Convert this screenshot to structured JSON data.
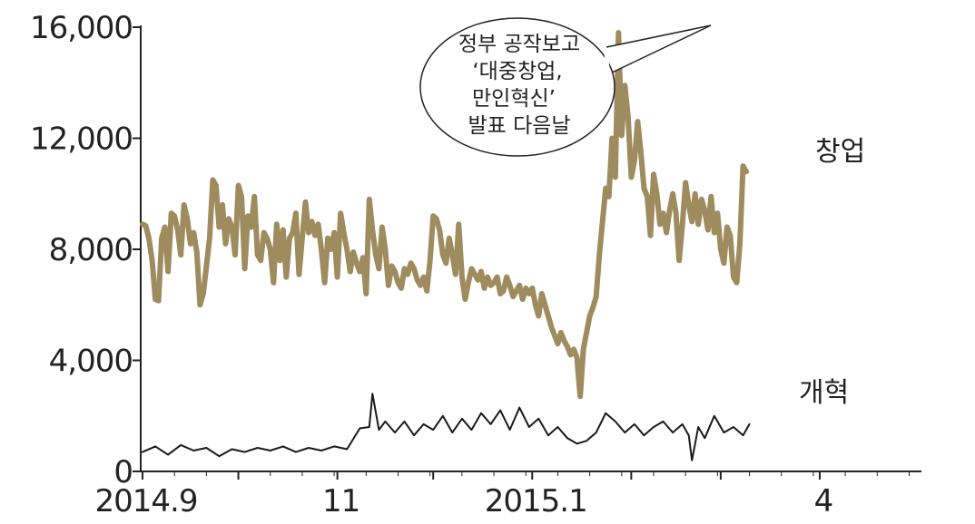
{
  "colors": {
    "startup": "#9e8b5e",
    "reform": "#1a1a1a",
    "axis": "#222222"
  },
  "chart_data": {
    "type": "line",
    "title": "",
    "xlabel": "",
    "ylabel": "",
    "ylim": [
      0,
      16000
    ],
    "yticks": [
      0,
      4000,
      8000,
      12000,
      16000
    ],
    "ytick_labels": [
      "0",
      "4,000",
      "8,000",
      "12,000",
      "16,000"
    ],
    "xlim": [
      "2014-09-01",
      "2015-04-30"
    ],
    "xtick_labels": [
      {
        "date": "2014-09-01",
        "label": "2014.9"
      },
      {
        "date": "2014-11-01",
        "label": "11"
      },
      {
        "date": "2015-01-01",
        "label": "2015.1"
      },
      {
        "date": "2015-04-01",
        "label": "4"
      }
    ],
    "minor_ticks": [
      "2014-10-01",
      "2014-12-01",
      "2015-02-01",
      "2015-03-01"
    ],
    "grid": false,
    "series": [
      {
        "name": "창업",
        "values": [
          [
            "2014-09-01",
            8900
          ],
          [
            "2014-09-02",
            8850
          ],
          [
            "2014-09-03",
            8400
          ],
          [
            "2014-09-04",
            7600
          ],
          [
            "2014-09-05",
            6200
          ],
          [
            "2014-09-06",
            6150
          ],
          [
            "2014-09-07",
            8400
          ],
          [
            "2014-09-08",
            8800
          ],
          [
            "2014-09-09",
            7200
          ],
          [
            "2014-09-10",
            9300
          ],
          [
            "2014-09-11",
            9200
          ],
          [
            "2014-09-12",
            8700
          ],
          [
            "2014-09-13",
            7800
          ],
          [
            "2014-09-14",
            9600
          ],
          [
            "2014-09-15",
            9100
          ],
          [
            "2014-09-16",
            8200
          ],
          [
            "2014-09-17",
            8600
          ],
          [
            "2014-09-18",
            7900
          ],
          [
            "2014-09-19",
            6000
          ],
          [
            "2014-09-20",
            6400
          ],
          [
            "2014-09-21",
            7400
          ],
          [
            "2014-09-22",
            8400
          ],
          [
            "2014-09-23",
            10500
          ],
          [
            "2014-09-24",
            10300
          ],
          [
            "2014-09-25",
            8800
          ],
          [
            "2014-09-26",
            9600
          ],
          [
            "2014-09-27",
            8200
          ],
          [
            "2014-09-28",
            9100
          ],
          [
            "2014-09-29",
            8800
          ],
          [
            "2014-09-30",
            7800
          ],
          [
            "2014-10-01",
            10300
          ],
          [
            "2014-10-02",
            9900
          ],
          [
            "2014-10-03",
            7300
          ],
          [
            "2014-10-04",
            9200
          ],
          [
            "2014-10-05",
            8800
          ],
          [
            "2014-10-06",
            9900
          ],
          [
            "2014-10-07",
            7800
          ],
          [
            "2014-10-08",
            7600
          ],
          [
            "2014-10-09",
            8600
          ],
          [
            "2014-10-10",
            8400
          ],
          [
            "2014-10-11",
            8000
          ],
          [
            "2014-10-12",
            6800
          ],
          [
            "2014-10-13",
            8900
          ],
          [
            "2014-10-14",
            7600
          ],
          [
            "2014-10-15",
            8700
          ],
          [
            "2014-10-16",
            7000
          ],
          [
            "2014-10-17",
            8400
          ],
          [
            "2014-10-18",
            8600
          ],
          [
            "2014-10-19",
            9300
          ],
          [
            "2014-10-20",
            7100
          ],
          [
            "2014-10-21",
            8400
          ],
          [
            "2014-10-22",
            9700
          ],
          [
            "2014-10-23",
            8600
          ],
          [
            "2014-10-24",
            9000
          ],
          [
            "2014-10-25",
            8500
          ],
          [
            "2014-10-26",
            8900
          ],
          [
            "2014-10-27",
            8000
          ],
          [
            "2014-10-28",
            6800
          ],
          [
            "2014-10-29",
            8400
          ],
          [
            "2014-10-30",
            8000
          ],
          [
            "2014-10-31",
            8600
          ],
          [
            "2014-11-01",
            7000
          ],
          [
            "2014-11-02",
            9300
          ],
          [
            "2014-11-03",
            8600
          ],
          [
            "2014-11-04",
            8000
          ],
          [
            "2014-11-05",
            7200
          ],
          [
            "2014-11-06",
            7900
          ],
          [
            "2014-11-07",
            7500
          ],
          [
            "2014-11-08",
            7200
          ],
          [
            "2014-11-09",
            7700
          ],
          [
            "2014-11-10",
            6400
          ],
          [
            "2014-11-11",
            9800
          ],
          [
            "2014-11-12",
            8700
          ],
          [
            "2014-11-13",
            7800
          ],
          [
            "2014-11-14",
            7300
          ],
          [
            "2014-11-15",
            8800
          ],
          [
            "2014-11-16",
            8000
          ],
          [
            "2014-11-17",
            6700
          ],
          [
            "2014-11-18",
            7400
          ],
          [
            "2014-11-19",
            7200
          ],
          [
            "2014-11-20",
            6800
          ],
          [
            "2014-11-21",
            6600
          ],
          [
            "2014-11-22",
            7300
          ],
          [
            "2014-11-23",
            7100
          ],
          [
            "2014-11-24",
            7500
          ],
          [
            "2014-11-25",
            7300
          ],
          [
            "2014-11-26",
            6900
          ],
          [
            "2014-11-27",
            6700
          ],
          [
            "2014-11-28",
            7000
          ],
          [
            "2014-11-29",
            6500
          ],
          [
            "2014-11-30",
            7600
          ],
          [
            "2014-12-01",
            9200
          ],
          [
            "2014-12-02",
            9100
          ],
          [
            "2014-12-03",
            8700
          ],
          [
            "2014-12-04",
            7800
          ],
          [
            "2014-12-05",
            7500
          ],
          [
            "2014-12-06",
            8400
          ],
          [
            "2014-12-07",
            7800
          ],
          [
            "2014-12-08",
            7100
          ],
          [
            "2014-12-09",
            8900
          ],
          [
            "2014-12-10",
            7000
          ],
          [
            "2014-12-11",
            6200
          ],
          [
            "2014-12-12",
            6800
          ],
          [
            "2014-12-13",
            7300
          ],
          [
            "2014-12-14",
            7100
          ],
          [
            "2014-12-15",
            6900
          ],
          [
            "2014-12-16",
            7200
          ],
          [
            "2014-12-17",
            6600
          ],
          [
            "2014-12-18",
            7000
          ],
          [
            "2014-12-19",
            6700
          ],
          [
            "2014-12-20",
            6800
          ],
          [
            "2014-12-21",
            7000
          ],
          [
            "2014-12-22",
            6400
          ],
          [
            "2014-12-23",
            6500
          ],
          [
            "2014-12-24",
            7000
          ],
          [
            "2014-12-25",
            6700
          ],
          [
            "2014-12-26",
            6300
          ],
          [
            "2014-12-27",
            6500
          ],
          [
            "2014-12-28",
            6700
          ],
          [
            "2014-12-29",
            6200
          ],
          [
            "2014-12-30",
            6600
          ],
          [
            "2014-12-31",
            6400
          ],
          [
            "2015-01-01",
            6600
          ],
          [
            "2015-01-02",
            6000
          ],
          [
            "2015-01-03",
            5600
          ],
          [
            "2015-01-04",
            6400
          ],
          [
            "2015-01-05",
            6000
          ],
          [
            "2015-01-06",
            5600
          ],
          [
            "2015-01-07",
            5200
          ],
          [
            "2015-01-08",
            4900
          ],
          [
            "2015-01-09",
            4600
          ],
          [
            "2015-01-10",
            5000
          ],
          [
            "2015-01-11",
            4700
          ],
          [
            "2015-01-12",
            4500
          ],
          [
            "2015-01-13",
            4200
          ],
          [
            "2015-01-14",
            4400
          ],
          [
            "2015-01-15",
            4100
          ],
          [
            "2015-01-16",
            2700
          ],
          [
            "2015-01-17",
            4400
          ],
          [
            "2015-01-18",
            5000
          ],
          [
            "2015-01-19",
            5600
          ],
          [
            "2015-01-20",
            5900
          ],
          [
            "2015-01-21",
            6300
          ],
          [
            "2015-01-22",
            7800
          ],
          [
            "2015-01-23",
            9000
          ],
          [
            "2015-01-24",
            10200
          ],
          [
            "2015-01-25",
            9900
          ],
          [
            "2015-01-26",
            12000
          ],
          [
            "2015-01-27",
            10600
          ],
          [
            "2015-01-28",
            15800
          ],
          [
            "2015-01-29",
            12100
          ],
          [
            "2015-01-30",
            13900
          ],
          [
            "2015-01-31",
            12800
          ],
          [
            "2015-02-01",
            10600
          ],
          [
            "2015-02-02",
            11200
          ],
          [
            "2015-02-03",
            12600
          ],
          [
            "2015-02-04",
            11500
          ],
          [
            "2015-02-05",
            10200
          ],
          [
            "2015-02-06",
            9900
          ],
          [
            "2015-02-07",
            8500
          ],
          [
            "2015-02-08",
            10700
          ],
          [
            "2015-02-09",
            10000
          ],
          [
            "2015-02-10",
            8900
          ],
          [
            "2015-02-11",
            9300
          ],
          [
            "2015-02-12",
            8600
          ],
          [
            "2015-02-13",
            9400
          ],
          [
            "2015-02-14",
            10000
          ],
          [
            "2015-02-15",
            9300
          ],
          [
            "2015-02-16",
            7600
          ],
          [
            "2015-02-17",
            8900
          ],
          [
            "2015-02-18",
            10400
          ],
          [
            "2015-02-19",
            9600
          ],
          [
            "2015-02-20",
            9000
          ],
          [
            "2015-02-21",
            10000
          ],
          [
            "2015-02-22",
            8900
          ],
          [
            "2015-02-23",
            9800
          ],
          [
            "2015-02-24",
            9400
          ],
          [
            "2015-02-25",
            8700
          ],
          [
            "2015-02-26",
            9900
          ],
          [
            "2015-02-27",
            8600
          ],
          [
            "2015-02-28",
            9300
          ],
          [
            "2015-03-01",
            8000
          ],
          [
            "2015-03-02",
            7500
          ],
          [
            "2015-03-03",
            8800
          ],
          [
            "2015-03-04",
            8500
          ],
          [
            "2015-03-05",
            7000
          ],
          [
            "2015-03-06",
            6800
          ],
          [
            "2015-03-07",
            8200
          ],
          [
            "2015-03-08",
            11000
          ],
          [
            "2015-03-09",
            10800
          ]
        ]
      },
      {
        "name": "개혁",
        "values": [
          [
            "2014-09-01",
            700
          ],
          [
            "2014-09-05",
            900
          ],
          [
            "2014-09-09",
            600
          ],
          [
            "2014-09-13",
            950
          ],
          [
            "2014-09-17",
            750
          ],
          [
            "2014-09-21",
            850
          ],
          [
            "2014-09-25",
            550
          ],
          [
            "2014-09-29",
            800
          ],
          [
            "2014-10-03",
            700
          ],
          [
            "2014-10-07",
            850
          ],
          [
            "2014-10-11",
            750
          ],
          [
            "2014-10-15",
            900
          ],
          [
            "2014-10-19",
            700
          ],
          [
            "2014-10-23",
            850
          ],
          [
            "2014-10-27",
            750
          ],
          [
            "2014-10-31",
            900
          ],
          [
            "2014-11-04",
            800
          ],
          [
            "2014-11-08",
            1550
          ],
          [
            "2014-11-11",
            1600
          ],
          [
            "2014-11-12",
            2800
          ],
          [
            "2014-11-14",
            1500
          ],
          [
            "2014-11-16",
            1800
          ],
          [
            "2014-11-19",
            1400
          ],
          [
            "2014-11-22",
            1800
          ],
          [
            "2014-11-25",
            1300
          ],
          [
            "2014-11-28",
            1700
          ],
          [
            "2014-12-01",
            1500
          ],
          [
            "2014-12-04",
            2000
          ],
          [
            "2014-12-07",
            1400
          ],
          [
            "2014-12-10",
            1900
          ],
          [
            "2014-12-13",
            1500
          ],
          [
            "2014-12-16",
            2100
          ],
          [
            "2014-12-19",
            1700
          ],
          [
            "2014-12-22",
            2200
          ],
          [
            "2014-12-25",
            1500
          ],
          [
            "2014-12-28",
            2300
          ],
          [
            "2014-12-31",
            1600
          ],
          [
            "2015-01-03",
            1900
          ],
          [
            "2015-01-06",
            1300
          ],
          [
            "2015-01-09",
            1600
          ],
          [
            "2015-01-12",
            1200
          ],
          [
            "2015-01-15",
            1000
          ],
          [
            "2015-01-18",
            1100
          ],
          [
            "2015-01-21",
            1400
          ],
          [
            "2015-01-24",
            2100
          ],
          [
            "2015-01-27",
            1800
          ],
          [
            "2015-01-30",
            1400
          ],
          [
            "2015-02-02",
            1700
          ],
          [
            "2015-02-05",
            1300
          ],
          [
            "2015-02-08",
            1600
          ],
          [
            "2015-02-11",
            1800
          ],
          [
            "2015-02-14",
            1400
          ],
          [
            "2015-02-17",
            1700
          ],
          [
            "2015-02-19",
            1300
          ],
          [
            "2015-02-20",
            400
          ],
          [
            "2015-02-22",
            1600
          ],
          [
            "2015-02-24",
            1200
          ],
          [
            "2015-02-27",
            2000
          ],
          [
            "2015-03-02",
            1400
          ],
          [
            "2015-03-05",
            1600
          ],
          [
            "2015-03-08",
            1300
          ],
          [
            "2015-03-10",
            1700
          ]
        ]
      }
    ],
    "series_labels": [
      "창업",
      "개혁"
    ],
    "annotation": {
      "date": "2015-01-28",
      "value": 15800,
      "lines": [
        "정부 공작보고",
        "‘대중창업,",
        "만인혁신’",
        "발표 다음날"
      ]
    }
  }
}
